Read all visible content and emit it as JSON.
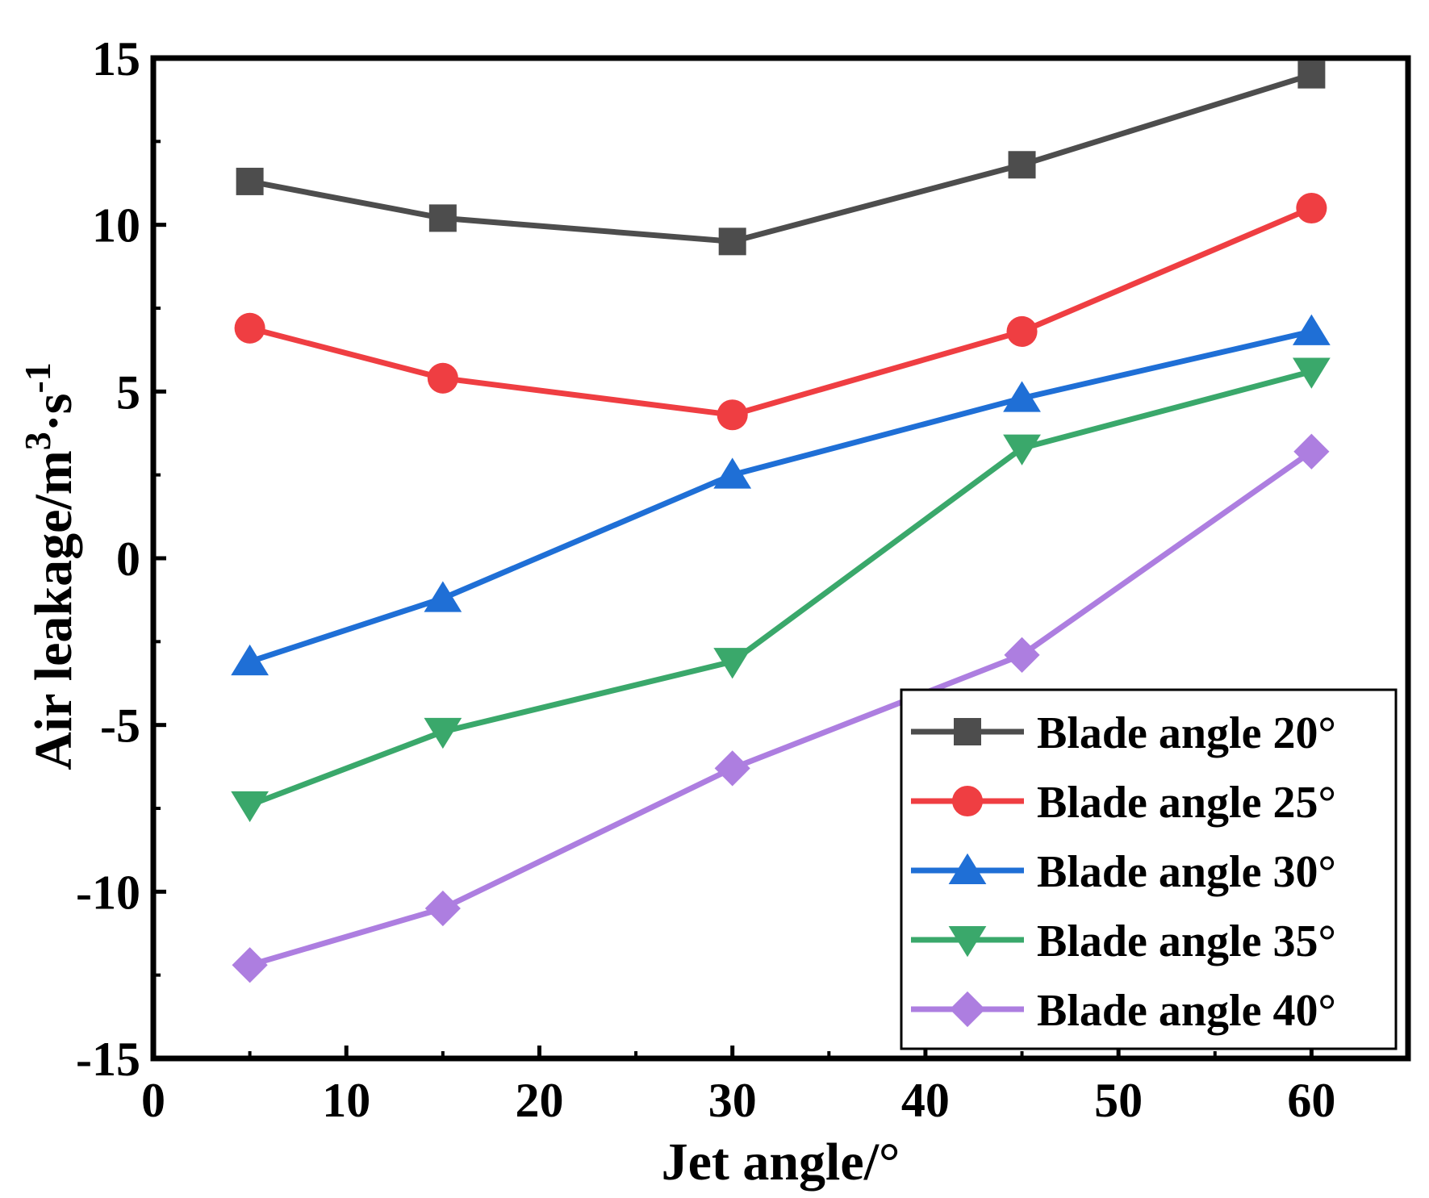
{
  "chart_data": {
    "type": "line",
    "title": "",
    "xlabel": "Jet angle/°",
    "ylabel": {
      "main": "Air leakage/m",
      "sup1": "3",
      "mid": "·s",
      "sup2": "-1"
    },
    "xlim": [
      0,
      65
    ],
    "ylim": [
      -15,
      15
    ],
    "xticks": [
      0,
      10,
      20,
      30,
      40,
      50,
      60
    ],
    "yticks": [
      -15,
      -10,
      -5,
      0,
      5,
      10,
      15
    ],
    "x": [
      5,
      15,
      30,
      45,
      60
    ],
    "legend_position": "bottom-right",
    "series": [
      {
        "name": "Blade angle 20°",
        "color": "#4d4d4d",
        "marker": "square",
        "values": [
          11.3,
          10.2,
          9.5,
          11.8,
          14.5
        ]
      },
      {
        "name": "Blade angle 25°",
        "color": "#ef3e42",
        "marker": "circle",
        "values": [
          6.9,
          5.4,
          4.3,
          6.8,
          10.5
        ]
      },
      {
        "name": "Blade angle 30°",
        "color": "#1f6fd6",
        "marker": "triangle-up",
        "values": [
          -3.1,
          -1.2,
          2.5,
          4.8,
          6.8
        ]
      },
      {
        "name": "Blade angle 35°",
        "color": "#3aa86b",
        "marker": "triangle-down",
        "values": [
          -7.4,
          -5.2,
          -3.1,
          3.3,
          5.6
        ]
      },
      {
        "name": "Blade angle 40°",
        "color": "#ad7ee0",
        "marker": "diamond",
        "values": [
          -12.2,
          -10.5,
          -6.3,
          -2.9,
          3.2
        ]
      }
    ]
  }
}
